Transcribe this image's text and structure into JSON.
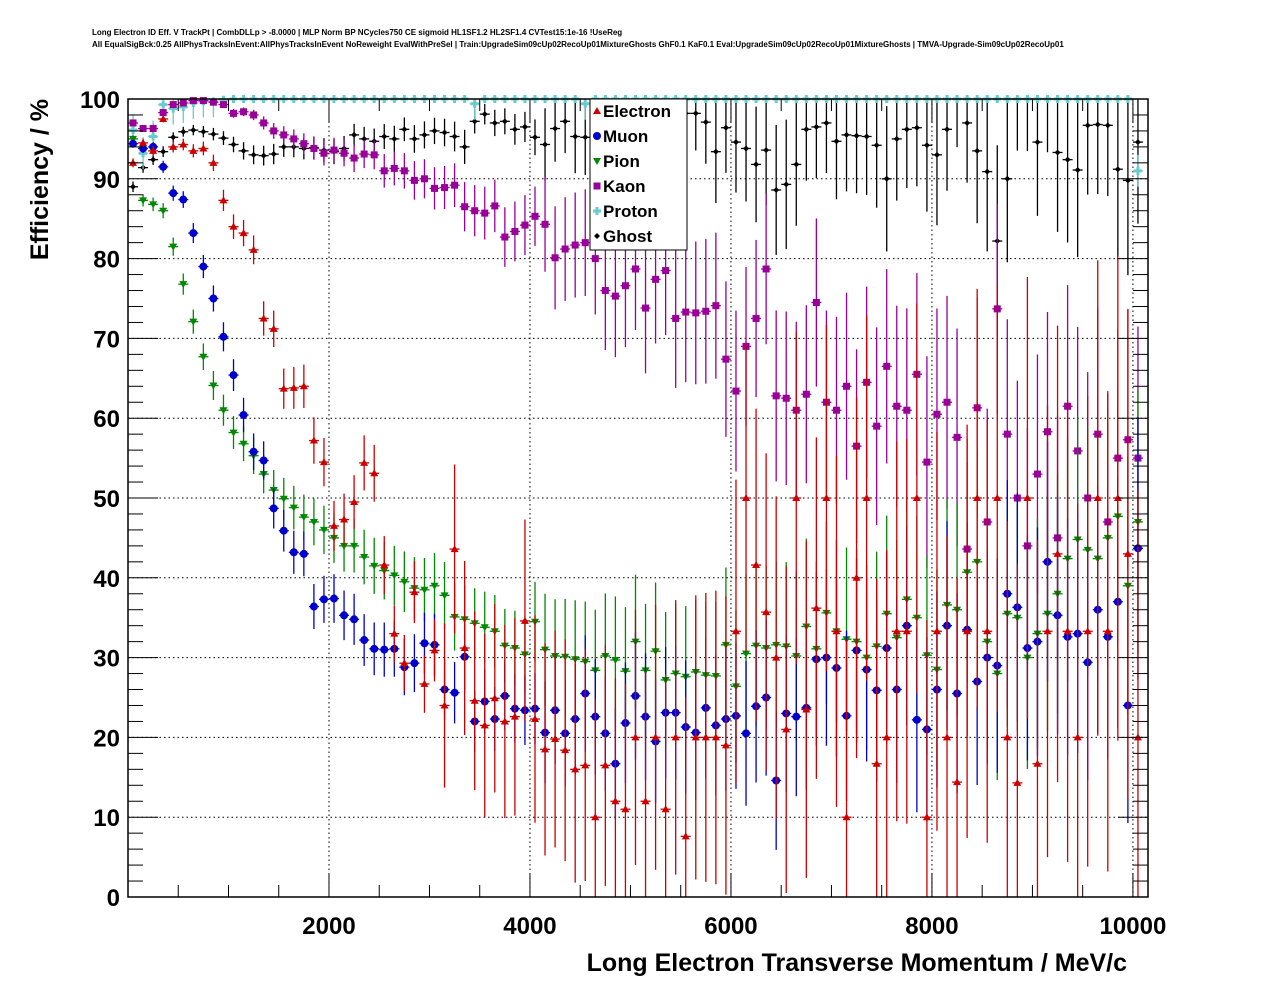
{
  "header": {
    "title_line1": "Long Electron ID Eff. V TrackPt | CombDLLp > -8.0000 | MLP Norm BP NCycles750 CE sigmoid HL1SF1.2 HL2SF1.4 CVTest15:1e-16 !UseReg",
    "title_line2": "All EqualSigBck:0.25 AllPhysTracksInEvent:AllPhysTracksInEvent NoReweight EvalWithPreSel | Train:UpgradeSim09cUp02RecoUp01MixtureGhosts GhF0.1 KaF0.1 Eval:UpgradeSim09cUp02RecoUp01MixtureGhosts | TMVA-Upgrade-Sim09cUp02RecoUp01"
  },
  "chart_data": {
    "type": "scatter",
    "title": "Long Electron ID Eff. V TrackPt | CombDLLp > -8.0000 | MLP Norm BP NCycles750 CE sigmoid HL1SF1.2 HL2SF1.4 CVTest15:1e-16 !UseReg",
    "subtitle": "All EqualSigBck:0.25 AllPhysTracksInEvent:AllPhysTracksInEvent NoReweight EvalWithPreSel | Train:UpgradeSim09cUp02RecoUp01MixtureGhosts GhF0.1 KaF0.1 Eval:UpgradeSim09cUp02RecoUp01MixtureGhosts | TMVA-Upgrade-Sim09cUp02RecoUp01",
    "xlabel": "Long Electron Transverse Momentum / MeV/c",
    "ylabel": "Efficiency / %",
    "xlim": [
      0,
      10150
    ],
    "ylim": [
      0,
      100
    ],
    "xticks": [
      2000,
      4000,
      6000,
      8000,
      10000
    ],
    "xtick_labels": [
      "2000",
      "4000",
      "6000",
      "8000",
      "10000"
    ],
    "yticks": [
      0,
      10,
      20,
      30,
      40,
      50,
      60,
      70,
      80,
      90,
      100
    ],
    "ytick_labels": [
      "0",
      "10",
      "20",
      "30",
      "40",
      "50",
      "60",
      "70",
      "80",
      "90",
      "100"
    ],
    "grid": true,
    "legend_position": "top-center",
    "bin_width": 100,
    "x_start": 50,
    "series": [
      {
        "name": "Electron",
        "color": "#cc0000",
        "marker": "triangle-up",
        "values": [
          92,
          94.5,
          93.5,
          97.5,
          94,
          94.3,
          93.5,
          93.8,
          92,
          87.3,
          84,
          83.2,
          81.1,
          72.5,
          71.2,
          63.7,
          63.8,
          64,
          57.2,
          54.5,
          46.5,
          47.3,
          49.5,
          54.4,
          53.1,
          41.6,
          33,
          29.3,
          38.2,
          26.7,
          30.9,
          24,
          43.6,
          31.2,
          24.6,
          21.5,
          24.9,
          22,
          22.6,
          34.6,
          22.3,
          18.5,
          19.8,
          18.4,
          16,
          16.5,
          10,
          16.5,
          12,
          11,
          20,
          12,
          20,
          11,
          20,
          7.6,
          20,
          20,
          20,
          19,
          33.3,
          50,
          41.6,
          35.7,
          30,
          21,
          50,
          23.5,
          36.2,
          50,
          33.3,
          10,
          40,
          50,
          16.7,
          20,
          33.3,
          33.3,
          50,
          10,
          33.3,
          20,
          14.4,
          33.3,
          50,
          33.3,
          50,
          20,
          14.3,
          50,
          16.7,
          33.3,
          43,
          33.3,
          20,
          33.3,
          50,
          33.3,
          50,
          43,
          20
        ]
      },
      {
        "name": "Muon",
        "color": "#0000cc",
        "marker": "circle",
        "values": [
          94.4,
          93.8,
          94,
          91.5,
          88.2,
          87.4,
          83.2,
          79,
          75,
          70.2,
          65.4,
          60.4,
          55.8,
          54.7,
          48.7,
          45.9,
          43.2,
          43,
          36.4,
          37.3,
          37.4,
          35.3,
          34.8,
          32.2,
          31.1,
          31,
          31.1,
          28.8,
          29.3,
          31.8,
          31.6,
          26,
          25.6,
          30.1,
          22,
          24.5,
          22.3,
          25.2,
          23.6,
          23.4,
          23.6,
          20.6,
          23.4,
          20.5,
          22.3,
          25.5,
          22.6,
          20.5,
          16.7,
          21.8,
          25.2,
          22.6,
          19.5,
          23.1,
          23.1,
          21.3,
          20.6,
          23.7,
          21.5,
          22.3,
          22.7,
          20.5,
          23.9,
          25,
          14.6,
          23,
          22.6,
          23.7,
          29.8,
          30,
          28.7,
          22.7,
          30.9,
          28.5,
          25.9,
          31.2,
          26,
          34,
          22.2,
          21,
          26,
          34,
          25.5,
          33.5,
          27,
          30,
          29,
          38,
          36.3,
          31.2,
          32,
          42,
          35.3,
          32.6,
          33,
          29.4,
          36,
          32.6,
          37,
          24,
          43.7
        ]
      },
      {
        "name": "Pion",
        "color": "#008800",
        "marker": "triangle-down",
        "values": [
          95,
          87.3,
          86.8,
          86,
          81.5,
          76.8,
          72.1,
          67.7,
          64.1,
          61,
          58.2,
          56.8,
          55.3,
          53,
          51,
          49.9,
          48.8,
          47.6,
          47,
          46,
          45,
          44,
          44,
          42.6,
          41.5,
          40.9,
          40.3,
          39.5,
          38.7,
          38.5,
          39,
          37.8,
          35.1,
          34.8,
          34.3,
          33.8,
          33.3,
          31.5,
          31.2,
          30.4,
          34.5,
          31,
          30.2,
          30.1,
          29.8,
          29.5,
          28.4,
          30.2,
          29.7,
          28.3,
          32,
          28.4,
          30.8,
          27.2,
          28,
          27.6,
          28.2,
          27.8,
          27.7,
          31.6,
          26.4,
          30.5,
          31.5,
          31.2,
          31.6,
          31.4,
          30.2,
          33.9,
          31.1,
          35.6,
          33.3,
          32.3,
          32,
          30,
          31.4,
          35.5,
          32.5,
          37.3,
          35,
          30.3,
          28.5,
          36.6,
          36,
          40.7,
          42,
          32,
          28,
          35.5,
          35,
          30,
          33,
          35.5,
          38,
          42.4,
          44.8,
          43.5,
          42.4,
          45,
          47.7,
          39,
          47
        ]
      },
      {
        "name": "Kaon",
        "color": "#990099",
        "marker": "square",
        "values": [
          97.0,
          96.3,
          96.3,
          98.3,
          99.3,
          99.5,
          99.8,
          99.8,
          99.6,
          99.3,
          98.2,
          98.4,
          98.0,
          97.0,
          96.0,
          95.5,
          95.0,
          94.4,
          93.8,
          93.2,
          93.6,
          93.2,
          92.6,
          93.1,
          93.0,
          91.0,
          91.3,
          91.0,
          89.8,
          90.0,
          88.8,
          88.9,
          89.2,
          86.5,
          86.0,
          85.7,
          86.6,
          82.7,
          83.4,
          84.2,
          85.3,
          84.3,
          80.1,
          81.2,
          81.7,
          82.0,
          80.0,
          76.0,
          75.3,
          76.6,
          78.7,
          73.8,
          77.4,
          78.5,
          72.5,
          73.3,
          73.2,
          73.4,
          74.1,
          67.4,
          63.4,
          69,
          72.5,
          78.7,
          62.8,
          62.5,
          61,
          63,
          74.5,
          62,
          61,
          64,
          56.5,
          64.5,
          59,
          66.5,
          61.5,
          61,
          65.5,
          54.5,
          60.5,
          62,
          57.6,
          43.6,
          61.3,
          47,
          73.7,
          58,
          50,
          44,
          53,
          58.3,
          45,
          61.5,
          55.9,
          50,
          58,
          47,
          55,
          57.3,
          55
        ]
      },
      {
        "name": "Proton",
        "color": "#66cccc",
        "marker": "cross",
        "values": [
          96.1,
          93.2,
          95.3,
          99.3,
          98.8,
          99.0,
          99.5,
          99.7,
          99.7,
          99.9,
          100,
          100,
          100,
          100,
          100,
          100,
          100,
          100,
          100,
          100,
          100,
          100,
          100,
          100,
          100,
          100,
          100,
          100,
          100,
          100,
          100,
          100,
          100,
          100,
          99.4,
          100,
          100,
          100,
          100,
          100,
          100,
          100,
          100,
          100,
          100,
          99.4,
          100,
          100,
          100,
          100,
          100,
          100,
          100,
          100,
          100,
          100,
          100,
          100,
          100,
          100,
          100,
          100,
          100,
          100,
          100,
          100,
          100,
          100,
          100,
          100,
          100,
          100,
          100,
          100,
          100,
          100,
          100,
          100,
          100,
          100,
          100,
          100,
          100,
          100,
          100,
          100,
          100,
          100,
          100,
          100,
          100,
          100,
          100,
          100,
          100,
          100,
          100,
          100,
          100,
          100,
          91
        ]
      },
      {
        "name": "Ghost",
        "color": "#000000",
        "marker": "diamond",
        "values": [
          89,
          91.4,
          92.4,
          93.4,
          95.2,
          95.9,
          96.1,
          95.9,
          95.6,
          95.1,
          94.3,
          93.5,
          93.0,
          92.9,
          93.1,
          94.0,
          94.0,
          93.8,
          93.9,
          93.6,
          93.4,
          93.8,
          95.5,
          95.0,
          94.7,
          95.3,
          95.0,
          96.2,
          95.0,
          95.5,
          96.0,
          95.8,
          95.3,
          94.0,
          97.2,
          98.1,
          97.0,
          97.2,
          96.2,
          96.5,
          95.2,
          94.3,
          96.3,
          97.2,
          95.3,
          95.2,
          94.5,
          92.2,
          95.5,
          97.5,
          97.5,
          97.0,
          93.8,
          95.1,
          97.3,
          98.2,
          98.2,
          97.1,
          93.4,
          96.4,
          94.6,
          93.8,
          91.8,
          93.6,
          88.6,
          89.3,
          91.8,
          96.2,
          96.5,
          97.0,
          94.7,
          95.5,
          95.4,
          95.3,
          94.2,
          90.0,
          95.0,
          96.2,
          96.4,
          94.2,
          93.0,
          96.2,
          100,
          97.0,
          93.5,
          90.9,
          82.2,
          90,
          100,
          100,
          94.6,
          100,
          93.3,
          92.4,
          91.1,
          96.7,
          96.8,
          96.7,
          91.2,
          89.8,
          94.6
        ]
      }
    ]
  },
  "legend": {
    "items": [
      {
        "label": "Electron",
        "icon": "triangle-up-icon",
        "color": "#cc0000"
      },
      {
        "label": "Muon",
        "icon": "circle-icon",
        "color": "#0000cc"
      },
      {
        "label": "Pion",
        "icon": "triangle-down-icon",
        "color": "#008800"
      },
      {
        "label": "Kaon",
        "icon": "square-icon",
        "color": "#990099"
      },
      {
        "label": "Proton",
        "icon": "cross-icon",
        "color": "#66cccc"
      },
      {
        "label": "Ghost",
        "icon": "diamond-icon",
        "color": "#000000"
      }
    ]
  }
}
